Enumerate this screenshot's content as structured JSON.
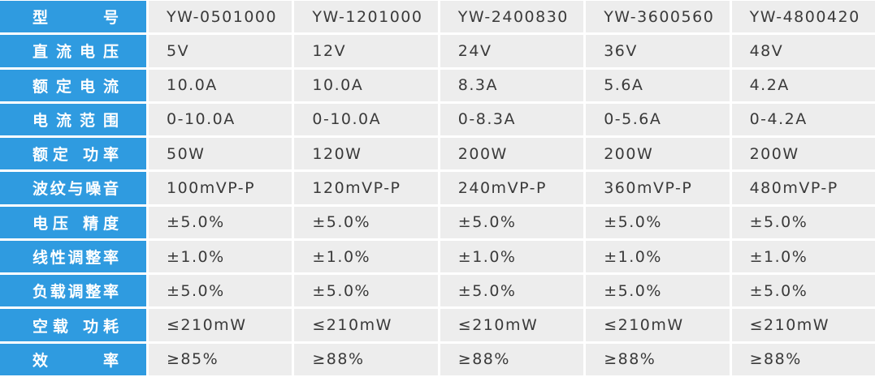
{
  "table": {
    "rows": [
      {
        "label": "型 号",
        "cells": [
          "YW-0501000",
          "YW-1201000",
          "YW-2400830",
          "YW-3600560",
          "YW-4800420"
        ]
      },
      {
        "label": "直流电压",
        "cells": [
          "5V",
          "12V",
          "24V",
          "36V",
          "48V"
        ]
      },
      {
        "label": "额定电流",
        "cells": [
          "10.0A",
          "10.0A",
          "8.3A",
          "5.6A",
          "4.2A"
        ]
      },
      {
        "label": "电流范围",
        "cells": [
          "0-10.0A",
          "0-10.0A",
          "0-8.3A",
          "0-5.6A",
          "0-4.2A"
        ]
      },
      {
        "label": "额定 功率",
        "cells": [
          "50W",
          "120W",
          "200W",
          "200W",
          "200W"
        ]
      },
      {
        "label": "波纹与噪音",
        "cells": [
          "100mVP-P",
          "120mVP-P",
          "240mVP-P",
          "360mVP-P",
          "480mVP-P"
        ]
      },
      {
        "label": "电压 精度",
        "cells": [
          "±5.0%",
          "±5.0%",
          "±5.0%",
          "±5.0%",
          "±5.0%"
        ]
      },
      {
        "label": "线性调整率",
        "cells": [
          "±1.0%",
          "±1.0%",
          "±1.0%",
          "±1.0%",
          "±1.0%"
        ]
      },
      {
        "label": "负载调整率",
        "cells": [
          "±5.0%",
          "±5.0%",
          "±5.0%",
          "±5.0%",
          "±5.0%"
        ]
      },
      {
        "label": "空载 功耗",
        "cells": [
          "≤210mW",
          "≤210mW",
          "≤210mW",
          "≤210mW",
          "≤210mW"
        ]
      },
      {
        "label": "效 率",
        "cells": [
          "≥85%",
          "≥88%",
          "≥88%",
          "≥88%",
          "≥88%"
        ]
      }
    ]
  }
}
